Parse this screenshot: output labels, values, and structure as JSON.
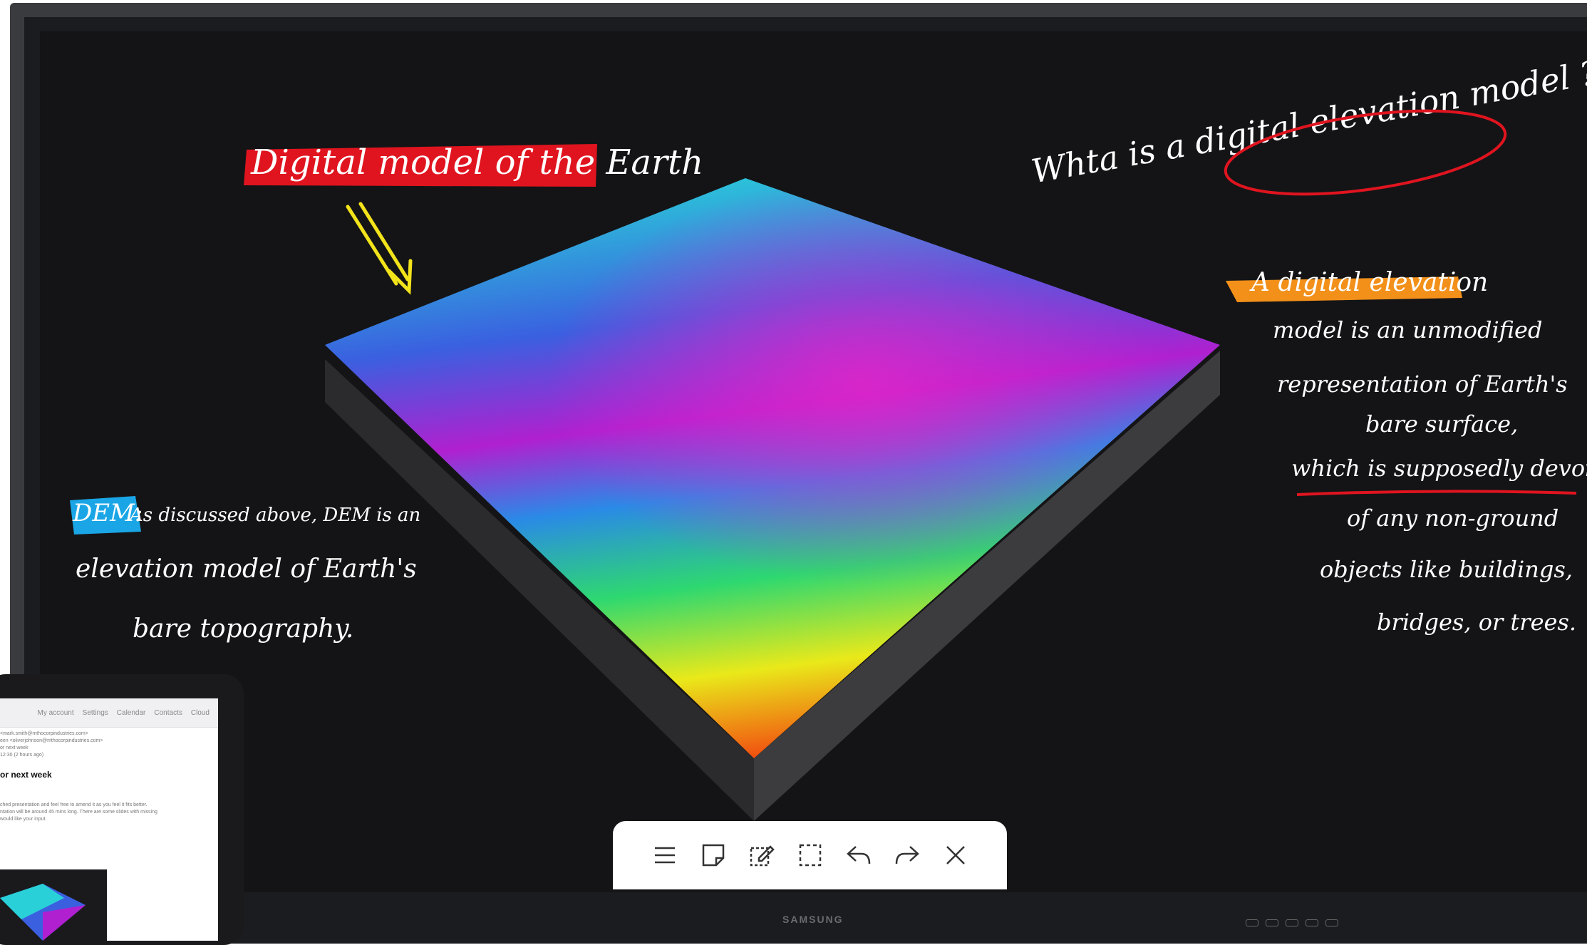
{
  "board": {
    "title": "Digital model of the Earth",
    "question": "Whta is a digital elevation model ?",
    "definition_highlight": "A digital elevation",
    "definition_lines": [
      "model is an unmodified",
      "representation of Earth's",
      "bare surface,",
      "which is supposedly devoid",
      "of any non-ground",
      "objects like buildings,",
      "bridges, or trees."
    ],
    "dem_tag": "DEM:",
    "dem_lines": [
      "As discussed above, DEM is an",
      "elevation model of Earth's",
      "bare topography."
    ]
  },
  "toolbar": {
    "items": [
      {
        "name": "menu-icon"
      },
      {
        "name": "sticky-note-icon"
      },
      {
        "name": "edit-note-icon"
      },
      {
        "name": "select-icon"
      },
      {
        "name": "undo-icon"
      },
      {
        "name": "redo-icon"
      },
      {
        "name": "close-icon"
      }
    ]
  },
  "monitor": {
    "brand": "SAMSUNG"
  },
  "tablet": {
    "nav": [
      "My account",
      "Settings",
      "Calendar",
      "Contacts",
      "Cloud"
    ],
    "from_line": "<mark.smith@mthocorpindustries.com>",
    "to_line": "een <oliverjohnson@mthocorpindustries.com>",
    "subject_small": "or next week",
    "time_line": "12:30 (2 hours ago)",
    "subject": "or next week",
    "body_lines": [
      "ched presentation and feel free to amend it as you feel it fits better.",
      "ntation will be around 45 mins long. There are some slides with missing",
      "would like your input."
    ]
  },
  "colors": {
    "accent_red": "#e0141f",
    "accent_orange": "#f2901a",
    "accent_blue": "#1aa6e6",
    "accent_yellow": "#f3e31b"
  }
}
